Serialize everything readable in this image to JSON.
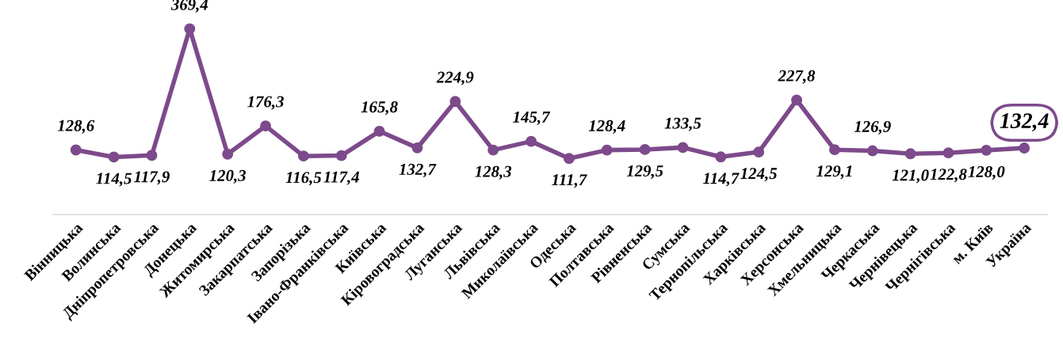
{
  "chart_data": {
    "type": "line",
    "categories": [
      "Вінницька",
      "Волинська",
      "Дніпропетровська",
      "Донецька",
      "Житомирська",
      "Закарпатська",
      "Запорізька",
      "Івано-Франківська",
      "Київська",
      "Кіровоградська",
      "Луганська",
      "Львівська",
      "Миколаївська",
      "Одеська",
      "Полтавська",
      "Рівненська",
      "Сумська",
      "Тернопільська",
      "Харківська",
      "Херсонська",
      "Хмельницька",
      "Черкаська",
      "Чернівецька",
      "Чернігівська",
      "м. Київ",
      "Україна"
    ],
    "series": [
      {
        "color": "#7d4a8b",
        "values": [
          128.6,
          114.5,
          117.9,
          369.4,
          120.3,
          176.3,
          116.5,
          117.4,
          165.8,
          132.7,
          224.9,
          128.3,
          145.7,
          111.7,
          128.4,
          129.5,
          133.5,
          114.7,
          124.5,
          227.8,
          129.1,
          126.9,
          121.0,
          122.8,
          128.0,
          132.4
        ],
        "value_labels": [
          "128,6",
          "114,5",
          "117,9",
          "369,4",
          "120,3",
          "176,3",
          "116,5",
          "117,4",
          "165,8",
          "132,7",
          "224,9",
          "128,3",
          "145,7",
          "111,7",
          "128,4",
          "129,5",
          "133,5",
          "114,7",
          "124,5",
          "227,8",
          "129,1",
          "126,9",
          "121,0",
          "122,8",
          "128,0",
          "132,4"
        ]
      }
    ],
    "marker": "circle",
    "line_style": "solid",
    "grid": false,
    "legend": false
  }
}
